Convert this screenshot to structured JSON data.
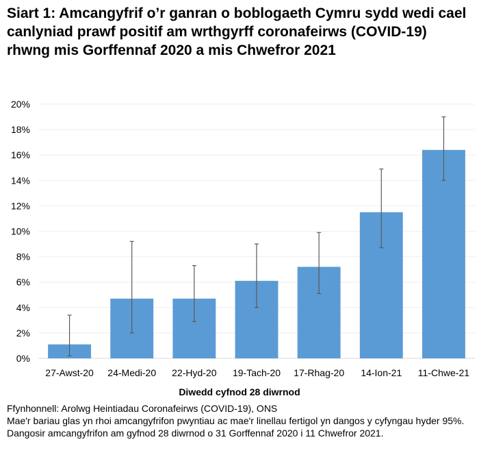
{
  "chart_data": {
    "type": "bar",
    "title": "Siart 1: Amcangyfrif o’r ganran o boblogaeth Cymru sydd wedi cael canlyniad prawf positif am wrthgyrff coronafeirws (COVID-19) rhwng mis Gorffennaf 2020 a mis Chwefror 2021",
    "xlabel": "Diwedd cyfnod 28 diwrnod",
    "ylabel": "",
    "categories": [
      "27-Awst-20",
      "24-Medi-20",
      "22-Hyd-20",
      "19-Tach-20",
      "17-Rhag-20",
      "14-Ion-21",
      "11-Chwe-21"
    ],
    "values": [
      1.1,
      4.7,
      4.7,
      6.1,
      7.2,
      11.5,
      16.4
    ],
    "lower_ci": [
      0.2,
      2.0,
      2.9,
      4.0,
      5.1,
      8.7,
      14.0
    ],
    "upper_ci": [
      3.4,
      9.2,
      7.3,
      9.0,
      9.9,
      14.9,
      19.0
    ],
    "ylim": [
      0,
      20
    ],
    "yticks": [
      "0%",
      "2%",
      "4%",
      "6%",
      "8%",
      "10%",
      "12%",
      "14%",
      "16%",
      "18%",
      "20%"
    ],
    "grid": true,
    "bar_color": "#5B9BD5",
    "error_bar_color": "#595959"
  },
  "notes": [
    "Ffynhonnell: Arolwg Heintiadau Coronafeirws (COVID-19), ONS",
    "Mae'r bariau glas yn rhoi amcangyfrifon pwyntiau ac mae'r linellau fertigol yn dangos y cyfyngau hyder 95%. Dangosir amcangyfrifon am gyfnod 28 diwrnod o 31 Gorffennaf 2020 i 11 Chwefror 2021."
  ]
}
